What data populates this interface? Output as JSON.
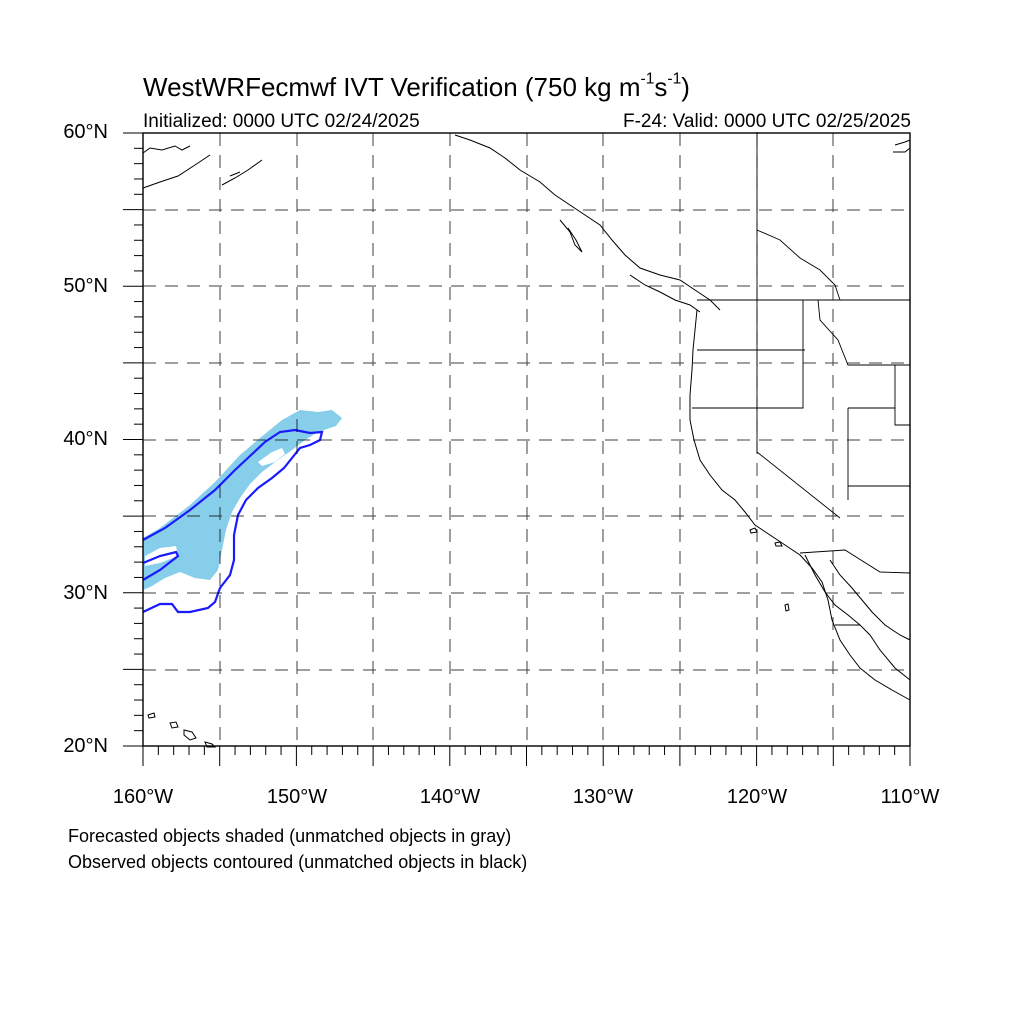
{
  "title": {
    "main": "WestWRFecmwf IVT Verification (750 kg m",
    "exp1": "-1",
    "s_part": "s",
    "exp2": "-1",
    "close": ")"
  },
  "initialized": "Initialized: 0000 UTC 02/24/2025",
  "valid": "F-24: Valid: 0000 UTC 02/25/2025",
  "lat_labels": [
    "60°N",
    "50°N",
    "40°N",
    "30°N",
    "20°N"
  ],
  "lon_labels": [
    "160°W",
    "150°W",
    "140°W",
    "130°W",
    "120°W",
    "110°W"
  ],
  "notes": [
    "Forecasted objects shaded (unmatched objects in gray)",
    "Observed objects contoured (unmatched objects in black)"
  ],
  "colors": {
    "forecast_fill": "#87ceeb",
    "observed_contour": "#1a1aff",
    "coastline": "#000000",
    "grid": "#000000"
  },
  "map_extent": {
    "lon": [
      -160,
      -110
    ],
    "lat": [
      20,
      60
    ]
  }
}
